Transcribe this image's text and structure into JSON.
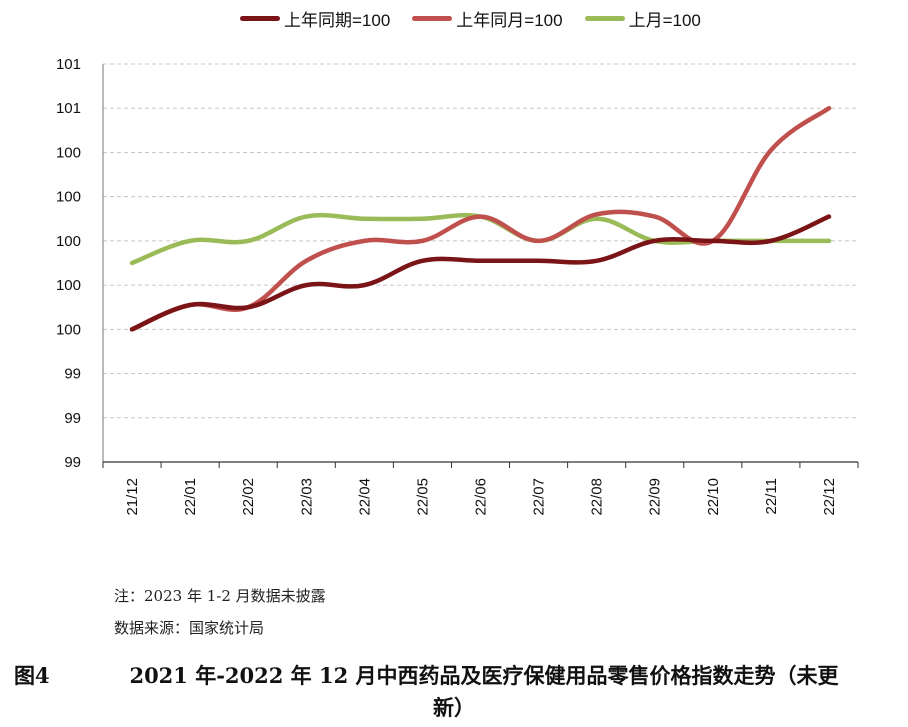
{
  "chart_data": {
    "type": "line",
    "title": "",
    "xlabel": "",
    "ylabel": "",
    "categories": [
      "21/12",
      "22/01",
      "22/02",
      "22/03",
      "22/04",
      "22/05",
      "22/06",
      "22/07",
      "22/08",
      "22/09",
      "22/10",
      "22/11",
      "22/12"
    ],
    "ytick_labels": [
      "99",
      "99",
      "99",
      "100",
      "100",
      "100",
      "100",
      "100",
      "101",
      "101"
    ],
    "ylim": [
      99.0,
      100.8
    ],
    "ytick_step": 0.2,
    "grid": "horizontal dashed",
    "legend_position": "top",
    "series": [
      {
        "name": "上年同期=100",
        "color": "#7a1416",
        "values": [
          99.6,
          99.71,
          99.7,
          99.8,
          99.8,
          99.91,
          99.91,
          99.91,
          99.91,
          100.0,
          100.0,
          100.0,
          100.11
        ]
      },
      {
        "name": "上年同月=100",
        "color": "#c0504d",
        "values": [
          99.6,
          99.71,
          99.7,
          99.91,
          100.0,
          100.0,
          100.11,
          100.0,
          100.12,
          100.11,
          100.0,
          100.41,
          100.6
        ]
      },
      {
        "name": "上月=100",
        "color": "#9bbb59",
        "values": [
          99.9,
          100.0,
          100.0,
          100.11,
          100.1,
          100.1,
          100.11,
          100.0,
          100.1,
          100.0,
          100.0,
          100.0,
          100.0
        ]
      }
    ]
  },
  "legend": {
    "items": [
      {
        "label": "上年同期=100",
        "color": "#7a1416"
      },
      {
        "label": "上年同月=100",
        "color": "#c0504d"
      },
      {
        "label": "上月=100",
        "color": "#9bbb59"
      }
    ]
  },
  "notes": {
    "note": "注：2023 年 1-2 月数据未披露",
    "source": "数据来源：国家统计局"
  },
  "caption": {
    "figure_label": "图4",
    "line1": "2021 年-2022 年 12 月中西药品及医疗保健用品零售价格指数走势（未更",
    "line2": "新）"
  }
}
